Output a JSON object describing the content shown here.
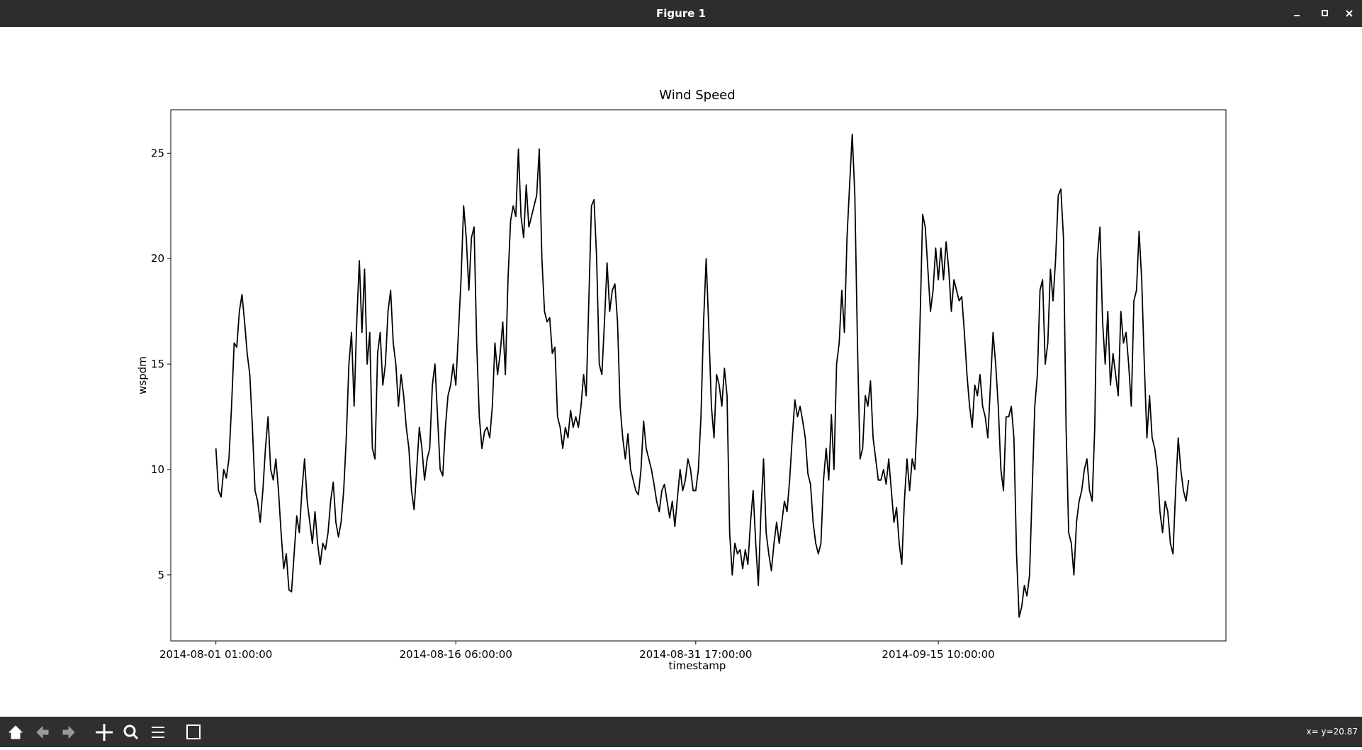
{
  "window": {
    "title": "Figure 1"
  },
  "status": "x= y=20.87",
  "chart_data": {
    "type": "line",
    "title": "Wind Speed",
    "xlabel": "timestamp",
    "ylabel": "wspdm",
    "color": "#000000",
    "xlim": [
      -17.3,
      387.3
    ],
    "ylim": [
      1.87,
      27.06
    ],
    "xticks": [
      {
        "value": 0,
        "label": "2014-08-01 01:00:00"
      },
      {
        "value": 92,
        "label": "2014-08-16 06:00:00"
      },
      {
        "value": 184,
        "label": "2014-08-31 17:00:00"
      },
      {
        "value": 277,
        "label": "2014-09-15 10:00:00"
      }
    ],
    "yticks": [
      5,
      10,
      15,
      20,
      25
    ],
    "values": [
      11,
      9,
      8.7,
      10,
      9.6,
      10.5,
      13,
      16,
      15.8,
      17.5,
      18.3,
      17,
      15.5,
      14.5,
      12,
      9,
      8.5,
      7.5,
      9,
      11,
      12.5,
      10,
      9.5,
      10.5,
      9,
      7,
      5.3,
      6,
      4.3,
      4.2,
      6,
      7.8,
      7,
      9,
      10.5,
      8.5,
      7.5,
      6.5,
      8,
      6.5,
      5.5,
      6.5,
      6.2,
      7,
      8.5,
      9.4,
      7.5,
      6.8,
      7.5,
      9,
      11.5,
      15,
      16.5,
      13,
      17,
      19.9,
      16.5,
      19.5,
      15,
      16.5,
      11,
      10.5,
      15.5,
      16.5,
      14,
      15,
      17.5,
      18.5,
      16,
      15,
      13,
      14.5,
      13.5,
      12,
      11,
      9,
      8.1,
      10,
      12,
      11,
      9.5,
      10.5,
      11,
      14,
      15,
      12.5,
      10,
      9.7,
      12,
      13.5,
      14,
      15,
      14,
      16.5,
      19,
      22.5,
      21,
      18.5,
      21,
      21.5,
      16,
      12.5,
      11,
      11.8,
      12,
      11.5,
      13,
      16,
      14.5,
      15.5,
      17,
      14.5,
      19,
      21.8,
      22.5,
      22,
      25.2,
      22,
      21,
      23.5,
      21.5,
      22,
      22.5,
      23,
      25.2,
      20,
      17.5,
      17,
      17.2,
      15.5,
      15.8,
      12.5,
      12,
      11,
      12,
      11.5,
      12.8,
      12,
      12.5,
      12,
      13,
      14.5,
      13.5,
      18,
      22.5,
      22.8,
      20,
      15,
      14.5,
      17,
      19.8,
      17.5,
      18.5,
      18.8,
      17,
      13,
      11.5,
      10.5,
      11.7,
      10,
      9.5,
      9,
      8.8,
      10,
      12.3,
      11,
      10.5,
      10,
      9.3,
      8.5,
      8,
      9,
      9.3,
      8.5,
      7.7,
      8.5,
      7.3,
      8.7,
      10,
      9,
      9.5,
      10.5,
      10,
      9,
      9,
      10,
      12.5,
      17,
      20,
      16.7,
      13,
      11.5,
      14.5,
      14,
      13,
      14.8,
      13.5,
      7,
      5,
      6.5,
      6,
      6.2,
      5.3,
      6.2,
      5.5,
      7.5,
      9,
      6.5,
      4.5,
      8,
      10.5,
      7,
      6,
      5.2,
      6.5,
      7.5,
      6.5,
      7.5,
      8.5,
      8,
      9.5,
      11.5,
      13.3,
      12.5,
      13,
      12.3,
      11.5,
      9.8,
      9.3,
      7.5,
      6.5,
      6,
      6.5,
      9.5,
      11,
      9.5,
      12.6,
      10,
      15,
      16,
      18.5,
      16.5,
      21,
      23.5,
      25.9,
      23,
      16,
      10.5,
      11,
      13.5,
      13,
      14.2,
      11.5,
      10.5,
      9.5,
      9.5,
      10,
      9.3,
      10.5,
      9,
      7.5,
      8.2,
      6.5,
      5.5,
      8.5,
      10.5,
      9,
      10.5,
      10,
      12.5,
      17,
      22.1,
      21.5,
      19.5,
      17.5,
      18.5,
      20.5,
      19,
      20.5,
      19,
      20.8,
      19.5,
      17.5,
      19,
      18.5,
      18,
      18.2,
      16.5,
      14.5,
      13,
      12,
      14,
      13.5,
      14.5,
      13,
      12.5,
      11.5,
      14,
      16.5,
      15,
      13,
      10,
      9,
      12.5,
      12.5,
      13,
      11.5,
      6,
      3,
      3.5,
      4.5,
      4,
      5,
      9,
      13,
      14.5,
      18.5,
      19,
      15,
      16,
      19.5,
      18,
      20,
      23,
      23.3,
      21,
      12,
      7,
      6.5,
      5,
      7.5,
      8.5,
      9,
      10,
      10.5,
      9,
      8.5,
      12,
      20,
      21.5,
      17,
      15,
      17.5,
      14,
      15.5,
      14.5,
      13.5,
      17.5,
      16,
      16.5,
      15,
      13,
      18,
      18.5,
      21.3,
      19,
      15,
      11.5,
      13.5,
      11.5,
      11,
      10,
      8,
      7,
      8.5,
      8,
      6.5,
      6,
      9,
      11.5,
      10,
      9,
      8.5,
      9.5
    ]
  }
}
